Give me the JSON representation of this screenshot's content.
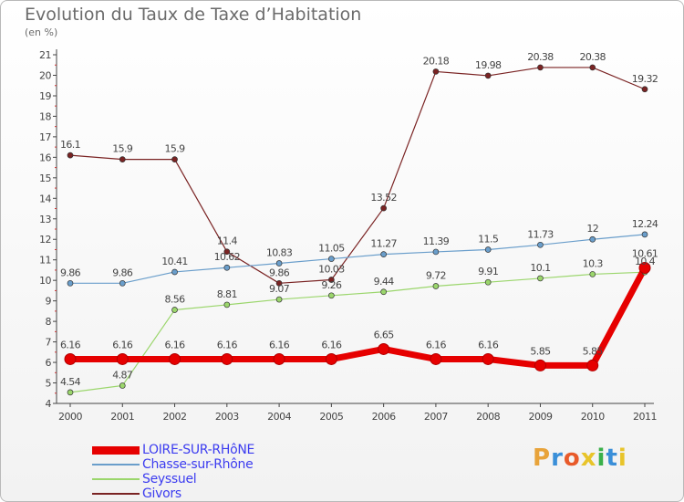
{
  "title": "Evolution du Taux de Taxe d’Habitation",
  "subtitle": "(en %)",
  "colors": {
    "axis": "#444444",
    "label": "#444444",
    "legend_text": "#3c3cf0"
  },
  "logo": {
    "letters": [
      "P",
      "r",
      "o",
      "x",
      "i",
      "t",
      "i"
    ],
    "colors": [
      "#e8a33a",
      "#3a8fd8",
      "#e85a2a",
      "#e8c42a",
      "#3ab04a",
      "#3a8fd8",
      "#e8c42a"
    ]
  },
  "chart_data": {
    "type": "line",
    "title": "Evolution du Taux de Taxe d’Habitation",
    "subtitle": "(en %)",
    "x": [
      "2000",
      "2001",
      "2002",
      "2003",
      "2004",
      "2005",
      "2006",
      "2007",
      "2008",
      "2009",
      "2010",
      "2011"
    ],
    "ylim": [
      4,
      21
    ],
    "yticks": [
      4,
      5,
      6,
      7,
      8,
      9,
      10,
      11,
      12,
      13,
      14,
      15,
      16,
      17,
      18,
      19,
      20,
      21
    ],
    "grid": false,
    "legend_position": "bottom-left",
    "series": [
      {
        "name": "Givors",
        "color": "#7a2323",
        "values": [
          16.1,
          15.9,
          15.9,
          11.4,
          9.86,
          10.03,
          13.52,
          20.18,
          19.98,
          20.38,
          20.38,
          19.32
        ],
        "labels": [
          "16.1",
          "15.9",
          "15.9",
          "11.4",
          "9.86",
          "10.03",
          "13.52",
          "20.18",
          "19.98",
          "20.38",
          "20.38",
          "19.32"
        ]
      },
      {
        "name": "Chasse-sur-Rhône",
        "color": "#6a9ecb",
        "values": [
          9.86,
          9.86,
          10.41,
          10.62,
          10.83,
          11.05,
          11.27,
          11.39,
          11.5,
          11.73,
          12,
          12.24
        ],
        "labels": [
          "9.86",
          "9.86",
          "10.41",
          "10.62",
          "10.83",
          "11.05",
          "11.27",
          "11.39",
          "11.5",
          "11.73",
          "12",
          "12.24"
        ]
      },
      {
        "name": "Seyssuel",
        "color": "#9bd66c",
        "values": [
          4.54,
          4.87,
          8.56,
          8.81,
          9.07,
          9.26,
          9.44,
          9.72,
          9.91,
          10.1,
          10.3,
          10.4
        ],
        "labels": [
          "4.54",
          "4.87",
          "8.56",
          "8.81",
          "9.07",
          "9.26",
          "9.44",
          "9.72",
          "9.91",
          "10.1",
          "10.3",
          "10.4"
        ]
      },
      {
        "name": "LOIRE-SUR-RHôNE",
        "color": "#e60000",
        "values": [
          6.16,
          6.16,
          6.16,
          6.16,
          6.16,
          6.16,
          6.65,
          6.16,
          6.16,
          5.85,
          5.85,
          10.61
        ],
        "labels": [
          "6.16",
          "6.16",
          "6.16",
          "6.16",
          "6.16",
          "6.16",
          "6.65",
          "6.16",
          "6.16",
          "5.85",
          "5.85",
          "10.61"
        ]
      }
    ],
    "legend": [
      "LOIRE-SUR-RHôNE",
      "Chasse-sur-Rhône",
      "Seyssuel",
      "Givors"
    ]
  }
}
